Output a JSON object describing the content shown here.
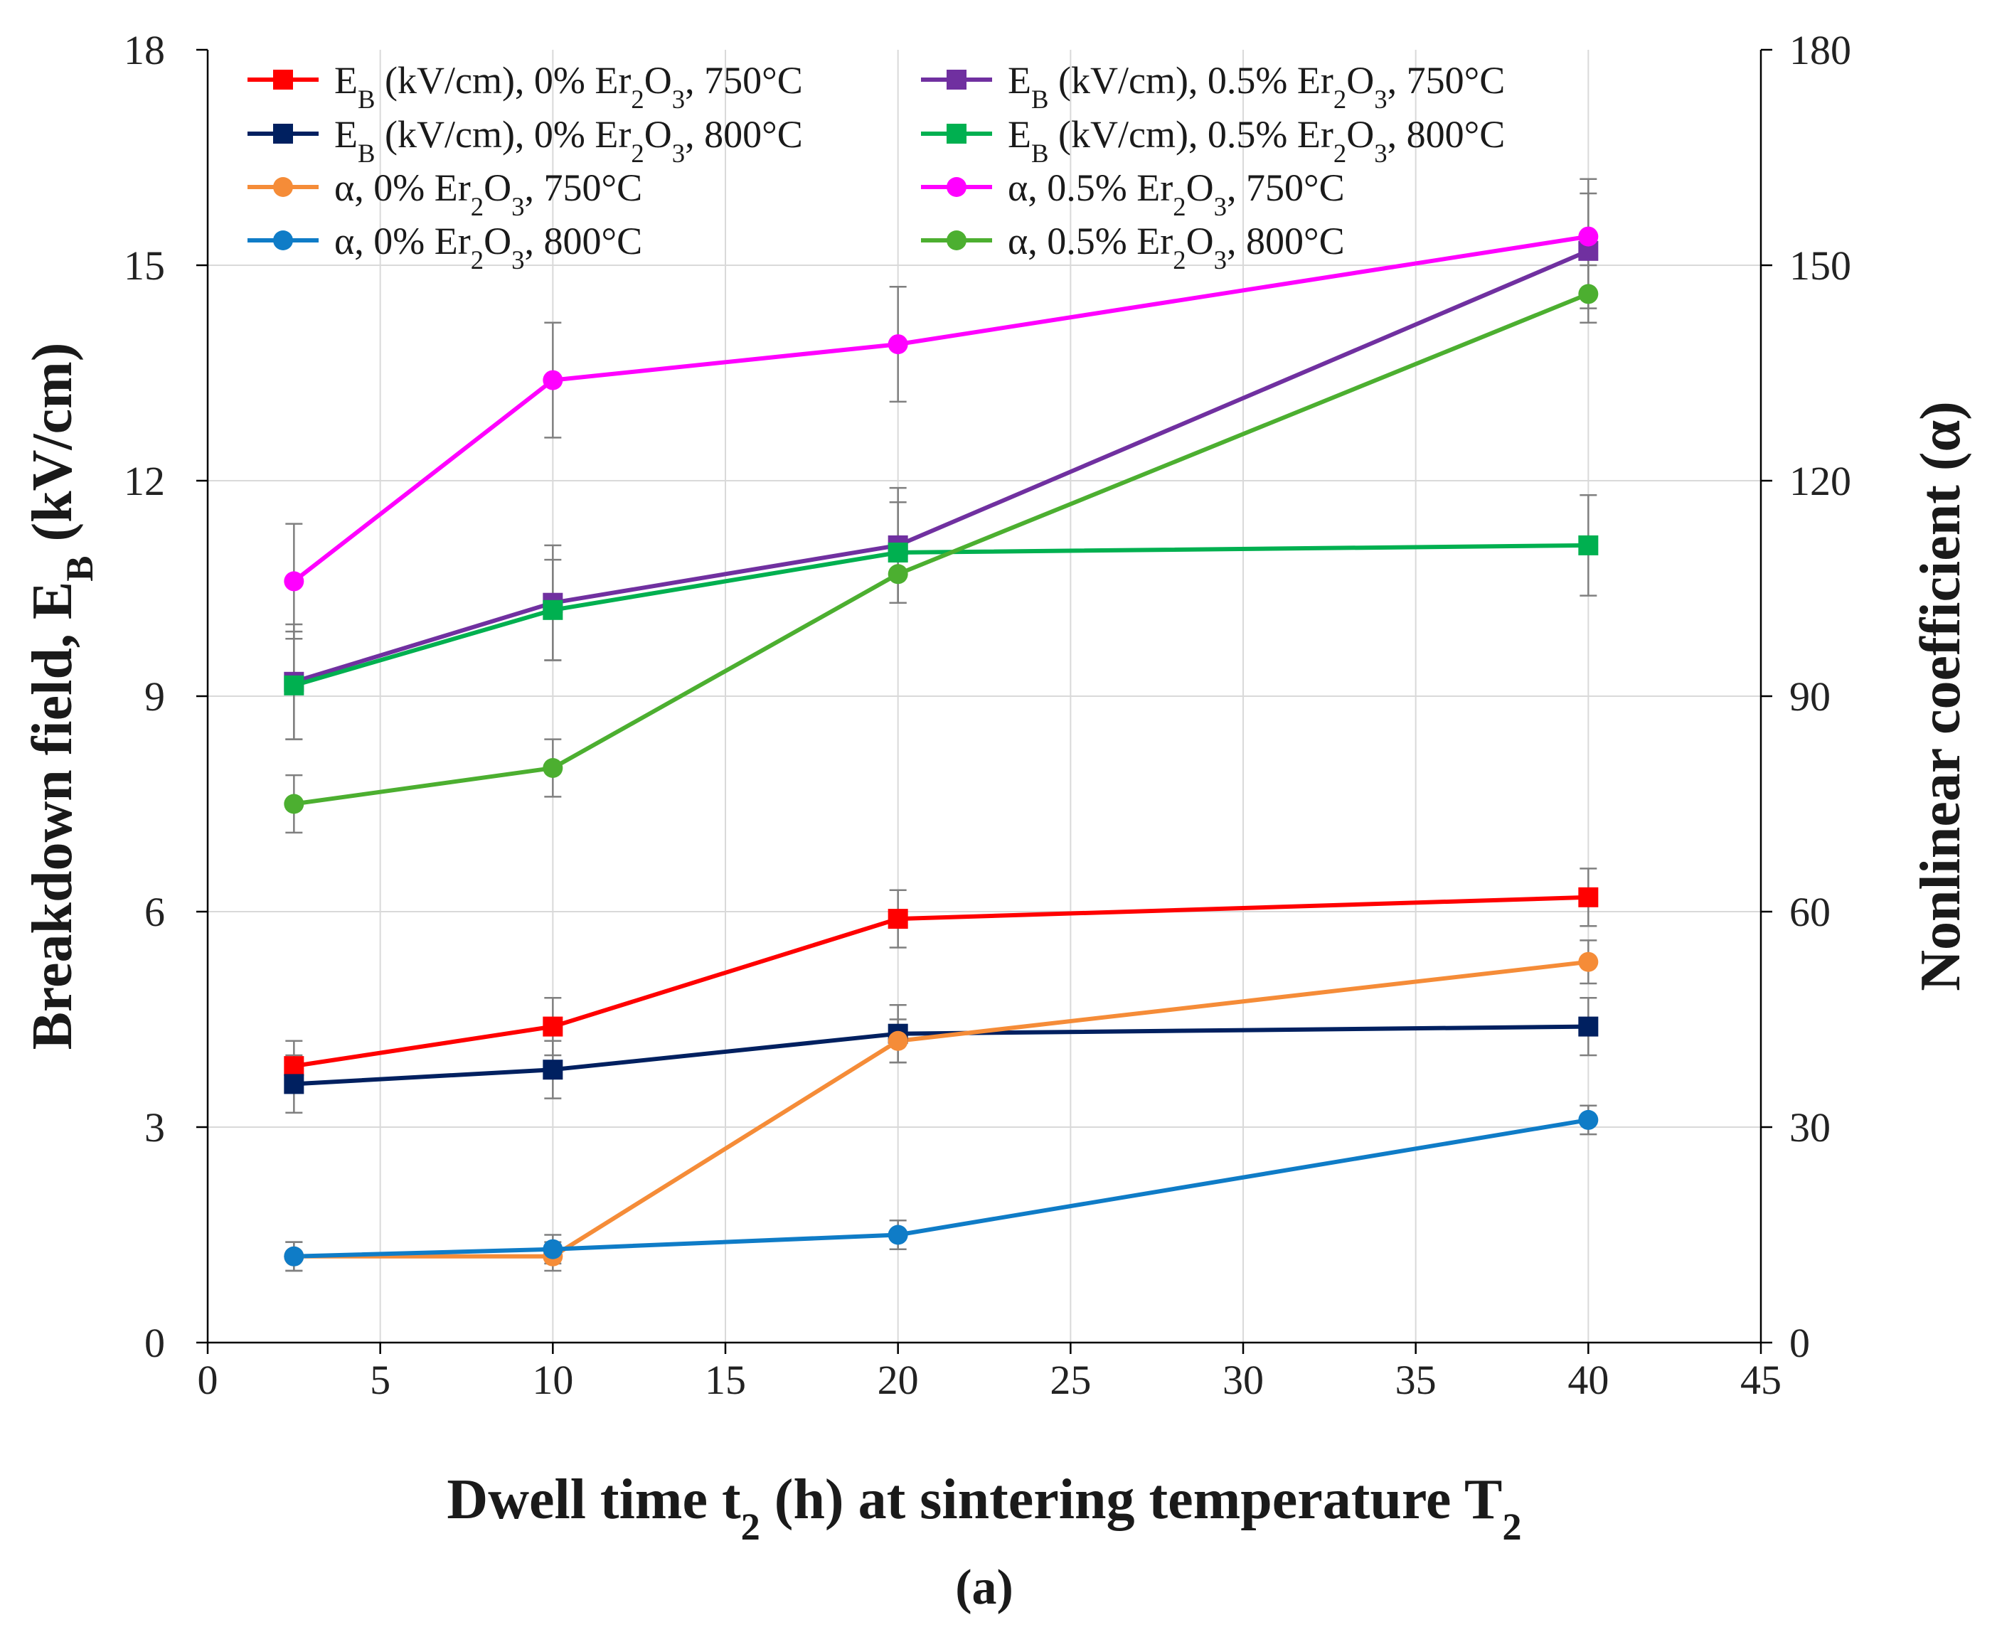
{
  "chart_data": {
    "type": "line",
    "title": "",
    "caption": "(a)",
    "xlabel": "Dwell time t2 (h) at sintering temperature T2",
    "xlabel_parts": [
      "Dwell time t",
      "2",
      " (h) at sintering temperature T",
      "2"
    ],
    "ylabel_left": "Breakdown field, EB (kV/cm)",
    "ylabel_left_parts": [
      "Breakdown field, E",
      "B",
      " (kV/cm)"
    ],
    "ylabel_right": "Nonlinear coefficient (α)",
    "xlim": [
      0,
      45
    ],
    "ylim_left": [
      0,
      18
    ],
    "ylim_right": [
      0,
      180
    ],
    "xticks": [
      "0",
      "5",
      "10",
      "15",
      "20",
      "25",
      "30",
      "35",
      "40",
      "45"
    ],
    "yticks_left": [
      "0",
      "3",
      "6",
      "9",
      "12",
      "15",
      "18"
    ],
    "yticks_right": [
      "0",
      "30",
      "60",
      "90",
      "120",
      "150",
      "180"
    ],
    "grid": true,
    "legend_position": "top-left, two columns",
    "x": [
      2.5,
      10,
      20,
      40
    ],
    "series": [
      {
        "name": "EB (kV/cm), 0% Er2O3, 750°C",
        "label_parts": [
          "E",
          "B",
          " (kV/cm), 0% Er",
          "2",
          "O",
          "3",
          ", 750°C"
        ],
        "axis": "left",
        "marker": "square",
        "color": "#ff0000",
        "values": [
          3.85,
          4.4,
          5.9,
          6.2
        ],
        "errors": [
          0.35,
          0.4,
          0.4,
          0.4
        ]
      },
      {
        "name": "EB (kV/cm), 0% Er2O3, 800°C",
        "label_parts": [
          "E",
          "B",
          " (kV/cm),  0% Er",
          "2",
          "O",
          "3",
          ", 800°C"
        ],
        "axis": "left",
        "marker": "square",
        "color": "#002060",
        "values": [
          3.6,
          3.8,
          4.3,
          4.4
        ],
        "errors": [
          0.4,
          0.4,
          0.4,
          0.4
        ]
      },
      {
        "name": "α, 0% Er2O3, 750°C",
        "label_parts": [
          "α, 0% Er",
          "2",
          "O",
          "3",
          ", 750°C"
        ],
        "axis": "right",
        "marker": "circle",
        "color": "#f58c38",
        "values": [
          12,
          12,
          42,
          53
        ],
        "errors": [
          2,
          2,
          3,
          3
        ]
      },
      {
        "name": "α, 0% Er2O3, 800°C",
        "label_parts": [
          "α, 0% Er",
          "2",
          "O",
          "3",
          ", 800°C"
        ],
        "axis": "right",
        "marker": "circle",
        "color": "#0f7cc7",
        "values": [
          12,
          13,
          15,
          31
        ],
        "errors": [
          2,
          2,
          2,
          2
        ]
      },
      {
        "name": "EB (kV/cm), 0.5% Er2O3, 750°C",
        "label_parts": [
          "E",
          "B",
          " (kV/cm),  0.5% Er",
          "2",
          "O",
          "3",
          ", 750°C"
        ],
        "axis": "left",
        "marker": "square",
        "color": "#7030a0",
        "values": [
          9.2,
          10.3,
          11.1,
          15.2
        ],
        "errors": [
          0.8,
          0.8,
          0.8,
          0.8
        ]
      },
      {
        "name": "EB (kV/cm), 0.5% Er2O3, 800°C",
        "label_parts": [
          "E",
          "B",
          " (kV/cm), 0.5% Er",
          "2",
          "O",
          "3",
          ", 800°C"
        ],
        "axis": "left",
        "marker": "square",
        "color": "#00b050",
        "values": [
          9.15,
          10.2,
          11.0,
          11.1
        ],
        "errors": [
          0.75,
          0.7,
          0.7,
          0.7
        ]
      },
      {
        "name": "α, 0.5% Er2O3, 750°C",
        "label_parts": [
          "α, 0.5% Er",
          "2",
          "O",
          "3",
          ", 750°C"
        ],
        "axis": "right",
        "marker": "circle",
        "color": "#ff00ff",
        "values": [
          106,
          134,
          139,
          154
        ],
        "errors": [
          8,
          8,
          8,
          8
        ]
      },
      {
        "name": "α, 0.5% Er2O3, 800°C",
        "label_parts": [
          "α, 0.5% Er",
          "2",
          "O",
          "3",
          ", 800°C"
        ],
        "axis": "right",
        "marker": "circle",
        "color": "#4caf30",
        "values": [
          75,
          80,
          107,
          146
        ],
        "errors": [
          4,
          4,
          4,
          4
        ]
      }
    ]
  }
}
